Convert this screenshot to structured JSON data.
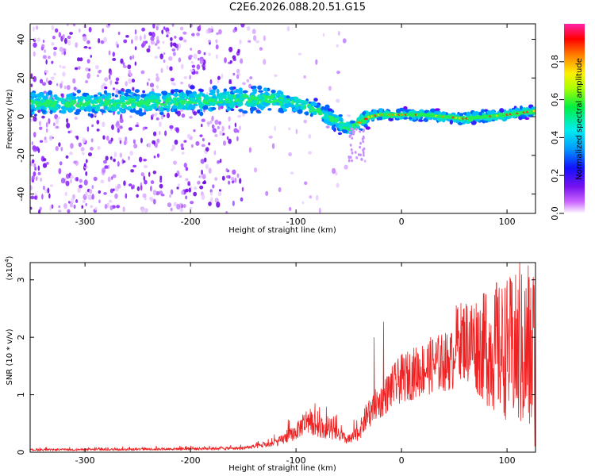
{
  "title": "C2E6.2026.088.20.51.G15",
  "chart_data": [
    {
      "type": "heatmap",
      "name": "spectrogram",
      "xlabel": "Height of straight line (km)",
      "ylabel": "Frequency (Hz)",
      "xlim": [
        -352,
        127
      ],
      "ylim": [
        -50,
        48
      ],
      "xticks": [
        -300,
        -200,
        -100,
        0,
        100
      ],
      "yticks": [
        -40,
        -20,
        0,
        20,
        40
      ],
      "colorbar": {
        "label": "Normalized spectral amplitude",
        "ticks": [
          0.0,
          0.2,
          0.4,
          0.6,
          0.8
        ],
        "range": [
          0,
          1
        ]
      },
      "ridge_x": [
        -352,
        -300,
        -250,
        -200,
        -150,
        -125,
        -100,
        -80,
        -70,
        -60,
        -50,
        -45,
        -40,
        -30,
        -20,
        -10,
        0,
        20,
        40,
        60,
        80,
        100,
        127
      ],
      "ridge_y": [
        7,
        7,
        7,
        8,
        9,
        9,
        7,
        3,
        0,
        -3,
        -6,
        -5,
        -3,
        0,
        1,
        1,
        1,
        1,
        0,
        -1,
        0,
        1,
        3
      ]
    },
    {
      "type": "line",
      "name": "snr",
      "xlabel": "Height of straight line (km)",
      "ylabel": "SNR (10 * v/v)",
      "y_multiplier": "(x10",
      "y_multiplier_exp": "4",
      "y_multiplier_close": ")",
      "xlim": [
        -352,
        127
      ],
      "ylim": [
        0,
        3.3
      ],
      "xticks": [
        -300,
        -200,
        -100,
        0,
        100
      ],
      "yticks": [
        0,
        1,
        2,
        3
      ],
      "color": "#ee2222",
      "envelope_x": [
        -352,
        -250,
        -150,
        -120,
        -100,
        -90,
        -80,
        -60,
        -50,
        -40,
        -30,
        -25,
        -20,
        -15,
        -10,
        0,
        10,
        20,
        30,
        40,
        50,
        60,
        70,
        80,
        90,
        100,
        110,
        120,
        127
      ],
      "envelope_y": [
        0.04,
        0.05,
        0.07,
        0.15,
        0.35,
        0.55,
        0.45,
        0.3,
        0.2,
        0.35,
        0.75,
        1.0,
        1.05,
        1.2,
        1.35,
        1.55,
        1.65,
        1.75,
        1.85,
        1.9,
        1.95,
        1.95,
        1.9,
        1.8,
        1.75,
        1.8,
        1.75,
        1.7,
        1.65
      ],
      "spikes": [
        {
          "x": -82,
          "y": 0.85
        },
        {
          "x": -17,
          "y": 2.27
        },
        {
          "x": -26,
          "y": 2.0
        },
        {
          "x": 80,
          "y": 2.75
        },
        {
          "x": 90,
          "y": 2.95
        },
        {
          "x": 112,
          "y": 3.3
        },
        {
          "x": 120,
          "y": 3.25
        },
        {
          "x": 125,
          "y": 3.05
        }
      ]
    }
  ]
}
